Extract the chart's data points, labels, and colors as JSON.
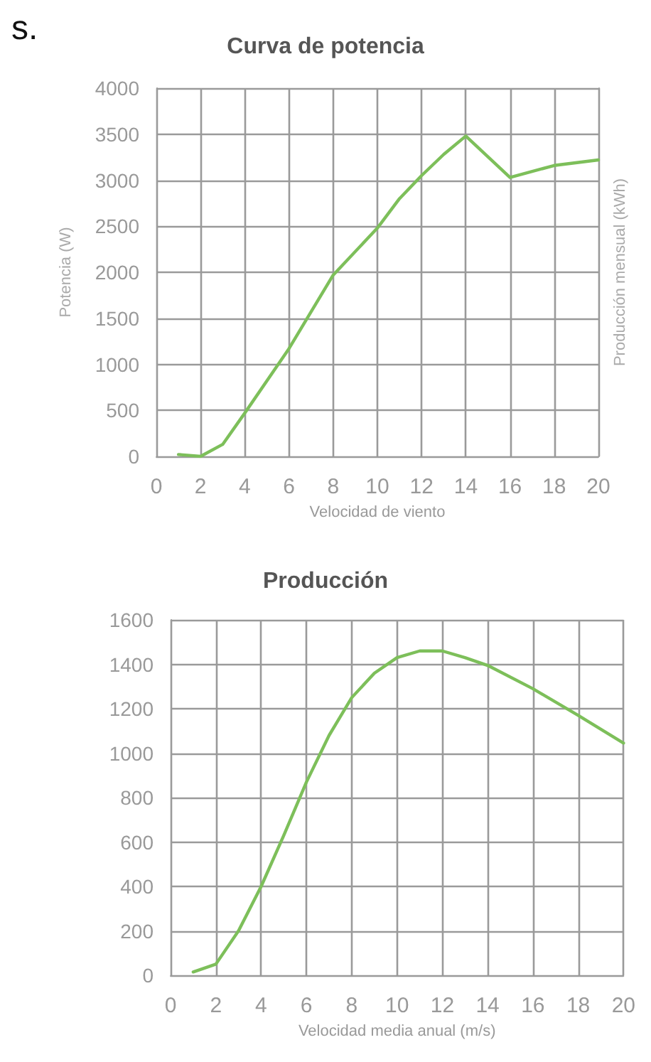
{
  "chart_data": [
    {
      "type": "line",
      "title": "Curva de potencia",
      "xlabel": "Velocidad de viento",
      "ylabel": "Potencia (W)",
      "y2label": "Producción mensual (kWh)",
      "annotations": [
        "s."
      ],
      "x": [
        1,
        2,
        3,
        4,
        6,
        8,
        10,
        11,
        12,
        13,
        14,
        16,
        18,
        20
      ],
      "series": [
        {
          "color": "#7dbf5a",
          "values": [
            20,
            0,
            130,
            470,
            1170,
            1970,
            2480,
            2800,
            3050,
            3280,
            3480,
            3030,
            3160,
            3220
          ]
        }
      ],
      "xlim": [
        0,
        20
      ],
      "xticks": [
        0,
        2,
        4,
        6,
        8,
        10,
        12,
        14,
        16,
        18,
        20
      ],
      "ylim": [
        0,
        4000
      ],
      "yticks": [
        0,
        500,
        1000,
        1500,
        2000,
        2500,
        3000,
        3500,
        4000
      ],
      "grid": true,
      "marker": "none",
      "line_style": "solid"
    },
    {
      "type": "line",
      "title": "Producción",
      "xlabel": "Velocidad media anual (m/s)",
      "x": [
        1,
        2,
        3,
        4,
        5,
        6,
        7,
        8,
        9,
        10,
        11,
        12,
        13,
        14,
        16,
        18,
        20
      ],
      "series": [
        {
          "color": "#7dbf5a",
          "values": [
            15,
            50,
            200,
            400,
            630,
            870,
            1080,
            1250,
            1360,
            1430,
            1460,
            1460,
            1430,
            1395,
            1290,
            1170,
            1045
          ]
        }
      ],
      "xlim": [
        0,
        20
      ],
      "xticks": [
        0,
        2,
        4,
        6,
        8,
        10,
        12,
        14,
        16,
        18,
        20
      ],
      "ylim": [
        0,
        1600
      ],
      "yticks": [
        0,
        200,
        400,
        600,
        800,
        1000,
        1200,
        1400,
        1600
      ],
      "grid": true,
      "marker": "none",
      "line_style": "solid"
    }
  ]
}
